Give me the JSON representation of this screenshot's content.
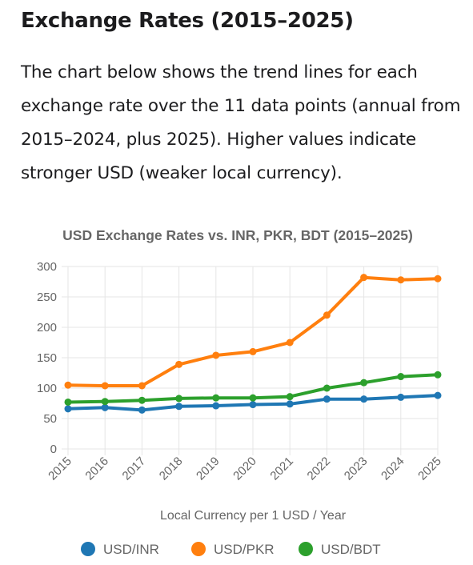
{
  "page": {
    "heading": "Exchange Rates (2015–2025)",
    "intro": "The chart below shows the trend lines for each exchange rate over the 11 data points (annual from 2015–2024, plus 2025). Higher values indicate stronger USD (weaker local currency)."
  },
  "chart_data": {
    "type": "line",
    "title": "USD Exchange Rates vs. INR, PKR, BDT (2015–2025)",
    "xlabel": "Local Currency per 1 USD / Year",
    "ylabel": "",
    "categories": [
      "2015",
      "2016",
      "2017",
      "2018",
      "2019",
      "2020",
      "2021",
      "2022",
      "2023",
      "2024",
      "2025"
    ],
    "ylim": [
      0,
      300
    ],
    "yticks": [
      0,
      50,
      100,
      150,
      200,
      250,
      300
    ],
    "grid": true,
    "legend_position": "bottom",
    "series": [
      {
        "name": "USD/INR",
        "color": "#1f77b4",
        "values": [
          66,
          68,
          64,
          70,
          71,
          73,
          74,
          82,
          82,
          85,
          88
        ]
      },
      {
        "name": "USD/PKR",
        "color": "#ff7f0e",
        "values": [
          105,
          104,
          104,
          139,
          154,
          160,
          175,
          220,
          282,
          278,
          280
        ]
      },
      {
        "name": "USD/BDT",
        "color": "#2ca02c",
        "values": [
          77,
          78,
          80,
          83,
          84,
          84,
          86,
          100,
          109,
          119,
          122
        ]
      }
    ]
  }
}
